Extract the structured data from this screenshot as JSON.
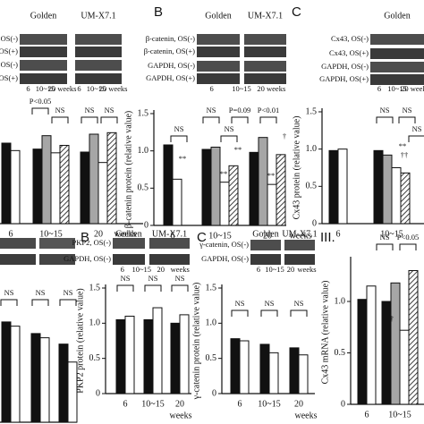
{
  "blots": [
    {
      "headers": [
        "Golden",
        "UM-X7.1"
      ],
      "rows": [
        "OS(-)",
        "OS(+)",
        "OS(-)",
        "OS(+)"
      ],
      "lanes": [
        "6",
        "10~15",
        "20 weeks",
        "6",
        "10~15",
        "20 weeks"
      ]
    },
    {
      "letter": "B",
      "headers": [
        "Golden",
        "UM-X7.1"
      ],
      "rows": [
        "β-catenin, OS(-)",
        "β-catenin, OS(+)",
        "GAPDH, OS(-)",
        "GAPDH, OS(+)"
      ],
      "lanes": [
        "6",
        "10~15",
        "20 weeks"
      ]
    },
    {
      "letter": "C",
      "headers": [
        "Golden"
      ],
      "rows": [
        "Cx43, OS(-)",
        "Cx43, OS(+)",
        "GAPDH, OS(-)",
        "GAPDH, OS(+)"
      ],
      "lanes": [
        "6",
        "10~15",
        "20 weeks"
      ]
    },
    {
      "letter": "B",
      "headers": [
        "Golden",
        "UM-X7.1"
      ],
      "rows": [
        "PKP2, OS(-)",
        "GAPDH, OS(-)"
      ],
      "lanes": [
        "6",
        "10~15",
        "20",
        "weeks"
      ]
    },
    {
      "letter": "C",
      "headers": [
        "Golden",
        "UM-X7.1"
      ],
      "rows": [
        "γ-catenin, OS(-)",
        "GAPDH, OS(-)"
      ],
      "lanes": [
        "6",
        "10~15",
        "20",
        "weeks"
      ]
    }
  ],
  "chart_data": [
    {
      "type": "bar",
      "categories": [
        "6",
        "10~15",
        "20"
      ],
      "xlabel": "weeks",
      "ylim": [
        0,
        1.5
      ],
      "series": [
        {
          "color": "#111111",
          "values": [
            1.08,
            1.0,
            0.96
          ]
        },
        {
          "color": "#a6a6a6",
          "values": [
            null,
            1.18,
            1.2
          ]
        },
        {
          "color": "#ffffff",
          "values": [
            0.98,
            0.95,
            0.82
          ]
        },
        {
          "color": "#ffffff",
          "pattern": "hatch",
          "values": [
            null,
            1.05,
            1.22
          ]
        }
      ],
      "annotations": [
        "P<0.05",
        "NS",
        "NS",
        "NS"
      ]
    },
    {
      "type": "bar",
      "categories": [
        "6",
        "10~15",
        "20"
      ],
      "xlabel": "weeks",
      "ylabel": "β-catenin protein (relative value)",
      "ylim": [
        0,
        1.5
      ],
      "yticks": [
        0,
        0.5,
        {
          "value": 1,
          "label": "1.0"
        },
        1.5
      ],
      "series": [
        {
          "color": "#111111",
          "values": [
            1.08,
            1.02,
            0.98
          ]
        },
        {
          "color": "#a6a6a6",
          "values": [
            null,
            1.05,
            1.18
          ]
        },
        {
          "color": "#ffffff",
          "values": [
            0.62,
            0.58,
            0.55
          ]
        },
        {
          "color": "#ffffff",
          "pattern": "hatch",
          "values": [
            null,
            0.8,
            0.95
          ]
        }
      ],
      "annotations": [
        "NS",
        "P=0.09",
        "P<0.01",
        "NS",
        "NS",
        "**",
        "**",
        "**",
        "**",
        "†"
      ]
    },
    {
      "type": "bar",
      "categories": [
        "6",
        "10~15"
      ],
      "ylabel": "Cx43 protein (relative value)",
      "ylim": [
        0,
        1.5
      ],
      "yticks": [
        0,
        0.5,
        {
          "value": 1,
          "label": "1.0"
        },
        1.5
      ],
      "series": [
        {
          "color": "#111111",
          "values": [
            0.98,
            0.98
          ]
        },
        {
          "color": "#a6a6a6",
          "values": [
            null,
            0.92
          ]
        },
        {
          "color": "#ffffff",
          "values": [
            1.0,
            0.75
          ]
        },
        {
          "color": "#ffffff",
          "pattern": "hatch",
          "values": [
            null,
            0.68
          ]
        }
      ],
      "annotations": [
        "NS",
        "NS",
        "NS",
        "**",
        "††"
      ]
    },
    {
      "type": "bar",
      "categories": [
        null,
        null,
        null
      ],
      "ylim": [
        0,
        1.5
      ],
      "series": [
        {
          "color": "#111111",
          "values": [
            0.95,
            0.84,
            0.74
          ]
        },
        {
          "color": "#ffffff",
          "values": [
            0.91,
            0.8,
            0.57
          ]
        }
      ],
      "annotations": [
        "NS",
        "NS",
        "NS"
      ]
    },
    {
      "type": "bar",
      "categories": [
        "6",
        "10~15",
        "20"
      ],
      "xlabel": "weeks",
      "ylabel": "PKP2 protein (relative value)",
      "ylim": [
        0,
        1.5
      ],
      "yticks": [
        0,
        0.5,
        {
          "value": 1,
          "label": "1.0"
        },
        1.5
      ],
      "series": [
        {
          "color": "#111111",
          "values": [
            1.05,
            1.05,
            1.0
          ]
        },
        {
          "color": "#ffffff",
          "values": [
            1.1,
            1.22,
            1.12
          ]
        }
      ],
      "annotations": [
        "NS",
        "NS",
        "NS"
      ]
    },
    {
      "type": "bar",
      "categories": [
        "6",
        "10~15",
        "20"
      ],
      "xlabel": "weeks",
      "ylabel": "γ-catenin protein (relative value)",
      "ylim": [
        0,
        1.5
      ],
      "yticks": [
        0,
        0.5,
        {
          "value": 1,
          "label": "1.0"
        },
        1.5
      ],
      "series": [
        {
          "color": "#111111",
          "values": [
            0.78,
            0.7,
            0.65
          ]
        },
        {
          "color": "#ffffff",
          "values": [
            0.75,
            0.58,
            0.55
          ]
        }
      ],
      "annotations": [
        "NS",
        "NS",
        "NS"
      ]
    },
    {
      "type": "bar",
      "title": "III.",
      "categories": [
        "6",
        "10~15"
      ],
      "ylabel": "Cx43 mRNA (relative value)",
      "ylim": [
        0,
        1.4
      ],
      "yticks": [
        0,
        0.5,
        {
          "value": 1,
          "label": "1.0"
        }
      ],
      "series": [
        {
          "color": "#111111",
          "values": [
            1.02,
            1.0
          ]
        },
        {
          "color": "#a6a6a6",
          "values": [
            null,
            1.18
          ]
        },
        {
          "color": "#ffffff",
          "values": [
            1.15,
            0.72
          ]
        },
        {
          "color": "#ffffff",
          "pattern": "hatch",
          "values": [
            null,
            1.3
          ]
        }
      ],
      "annotations": [
        "NS",
        "P<0.05",
        "†"
      ]
    }
  ]
}
